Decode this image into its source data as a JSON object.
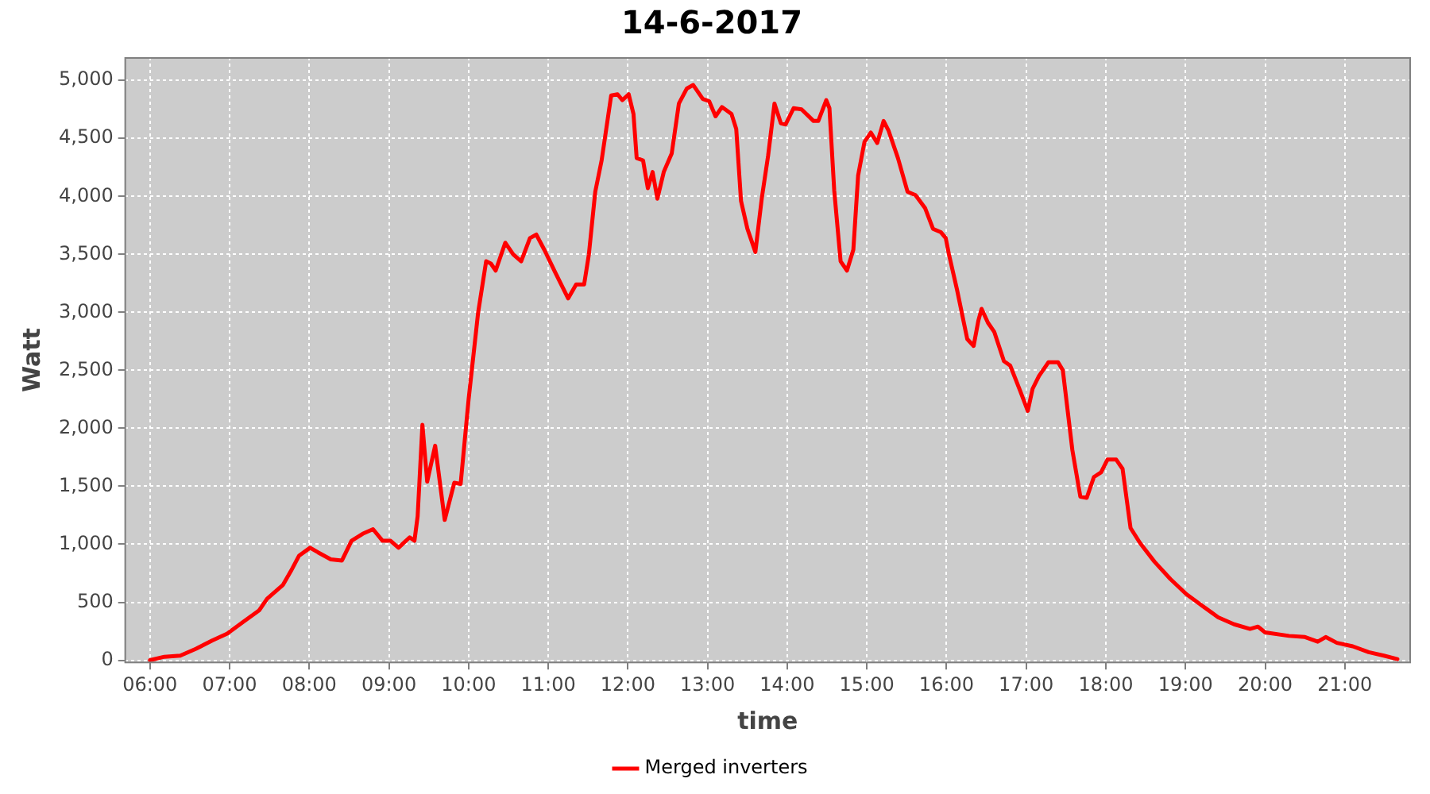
{
  "chart_data": {
    "type": "line",
    "title": "14-6-2017",
    "xlabel": "time",
    "ylabel": "Watt",
    "x": [
      6.0,
      6.18,
      6.38,
      6.58,
      6.78,
      6.97,
      7.17,
      7.37,
      7.47,
      7.67,
      7.77,
      7.87,
      8.01,
      8.11,
      8.27,
      8.41,
      8.53,
      8.67,
      8.8,
      8.92,
      9.02,
      9.12,
      9.26,
      9.32,
      9.36,
      9.42,
      9.48,
      9.58,
      9.7,
      9.82,
      9.9,
      10.0,
      10.12,
      10.22,
      10.28,
      10.34,
      10.46,
      10.56,
      10.66,
      10.77,
      10.85,
      10.95,
      11.09,
      11.25,
      11.35,
      11.45,
      11.51,
      11.59,
      11.67,
      11.79,
      11.87,
      11.93,
      12.01,
      12.07,
      12.11,
      12.19,
      12.25,
      12.31,
      12.37,
      12.45,
      12.55,
      12.64,
      12.74,
      12.82,
      12.94,
      13.02,
      13.1,
      13.18,
      13.3,
      13.36,
      13.42,
      13.5,
      13.6,
      13.68,
      13.76,
      13.84,
      13.92,
      13.98,
      14.08,
      14.18,
      14.33,
      14.39,
      14.49,
      14.53,
      14.59,
      14.67,
      14.75,
      14.83,
      14.89,
      14.97,
      15.05,
      15.13,
      15.21,
      15.27,
      15.39,
      15.51,
      15.61,
      15.73,
      15.83,
      15.93,
      15.99,
      16.03,
      16.13,
      16.26,
      16.34,
      16.4,
      16.44,
      16.52,
      16.6,
      16.72,
      16.8,
      16.92,
      17.02,
      17.08,
      17.16,
      17.28,
      17.4,
      17.46,
      17.58,
      17.68,
      17.76,
      17.85,
      17.94,
      18.02,
      18.13,
      18.21,
      18.31,
      18.43,
      18.61,
      18.81,
      19.01,
      19.21,
      19.41,
      19.61,
      19.81,
      19.91,
      20.0,
      20.3,
      20.5,
      20.66,
      20.76,
      20.9,
      21.1,
      21.3,
      21.49,
      21.66
    ],
    "series": [
      {
        "name": "Merged inverters",
        "color": "#ff0000",
        "values": [
          0,
          30,
          40,
          100,
          170,
          230,
          330,
          430,
          530,
          650,
          770,
          900,
          970,
          930,
          870,
          860,
          1030,
          1090,
          1130,
          1030,
          1030,
          970,
          1060,
          1030,
          1240,
          2030,
          1540,
          1850,
          1210,
          1530,
          1520,
          2250,
          3000,
          3440,
          3420,
          3360,
          3600,
          3500,
          3440,
          3640,
          3670,
          3540,
          3340,
          3120,
          3240,
          3240,
          3500,
          4040,
          4310,
          4870,
          4880,
          4830,
          4880,
          4710,
          4330,
          4310,
          4070,
          4210,
          3980,
          4210,
          4370,
          4800,
          4930,
          4960,
          4840,
          4820,
          4690,
          4770,
          4710,
          4580,
          3960,
          3720,
          3520,
          3980,
          4350,
          4800,
          4630,
          4620,
          4760,
          4750,
          4650,
          4650,
          4830,
          4760,
          4050,
          3440,
          3360,
          3540,
          4180,
          4470,
          4550,
          4460,
          4650,
          4570,
          4330,
          4040,
          4010,
          3900,
          3720,
          3690,
          3640,
          3500,
          3200,
          2770,
          2710,
          2930,
          3030,
          2910,
          2830,
          2580,
          2540,
          2330,
          2150,
          2340,
          2450,
          2570,
          2570,
          2500,
          1810,
          1410,
          1400,
          1580,
          1620,
          1730,
          1730,
          1650,
          1140,
          1010,
          850,
          700,
          570,
          470,
          370,
          310,
          270,
          290,
          240,
          210,
          200,
          160,
          200,
          150,
          120,
          70,
          40,
          10
        ]
      }
    ],
    "xlim": [
      5.68,
      21.83
    ],
    "xticks": [
      {
        "value": 6,
        "label": "06:00"
      },
      {
        "value": 7,
        "label": "07:00"
      },
      {
        "value": 8,
        "label": "08:00"
      },
      {
        "value": 9,
        "label": "09:00"
      },
      {
        "value": 10,
        "label": "10:00"
      },
      {
        "value": 11,
        "label": "11:00"
      },
      {
        "value": 12,
        "label": "12:00"
      },
      {
        "value": 13,
        "label": "13:00"
      },
      {
        "value": 14,
        "label": "14:00"
      },
      {
        "value": 15,
        "label": "15:00"
      },
      {
        "value": 16,
        "label": "16:00"
      },
      {
        "value": 17,
        "label": "17:00"
      },
      {
        "value": 18,
        "label": "18:00"
      },
      {
        "value": 19,
        "label": "19:00"
      },
      {
        "value": 20,
        "label": "20:00"
      },
      {
        "value": 21,
        "label": "21:00"
      }
    ],
    "ylim": [
      -25,
      5200
    ],
    "yticks": [
      0,
      500,
      {
        "value": 1000,
        "label": "1,000"
      },
      {
        "value": 1500,
        "label": "1,500"
      },
      {
        "value": 2000,
        "label": "2,000"
      },
      {
        "value": 2500,
        "label": "2,500"
      },
      {
        "value": 3000,
        "label": "3,000"
      },
      {
        "value": 3500,
        "label": "3,500"
      },
      {
        "value": 4000,
        "label": "4,000"
      },
      {
        "value": 4500,
        "label": "4,500"
      },
      {
        "value": 5000,
        "label": "5,000"
      }
    ],
    "grid": true,
    "legend": "bottom",
    "marker": "none",
    "line_style": "solid"
  }
}
